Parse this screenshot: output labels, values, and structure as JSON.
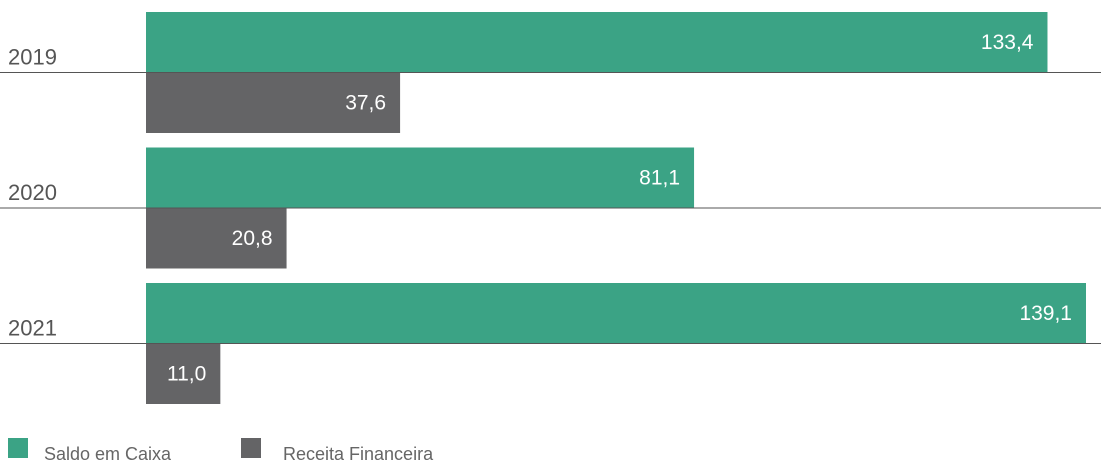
{
  "chart_data": {
    "type": "bar",
    "orientation": "horizontal",
    "categories": [
      "2019",
      "2020",
      "2021"
    ],
    "series": [
      {
        "name": "Saldo em Caixa",
        "color": "#3ba385",
        "values": [
          133.4,
          81.1,
          139.1
        ],
        "value_labels": [
          "133,4",
          "81,1",
          "139,1"
        ]
      },
      {
        "name": "Receita Financeira",
        "color": "#646466",
        "values": [
          37.6,
          20.8,
          11.0
        ],
        "value_labels": [
          "37,6",
          "20,8",
          "11,0"
        ]
      }
    ]
  }
}
